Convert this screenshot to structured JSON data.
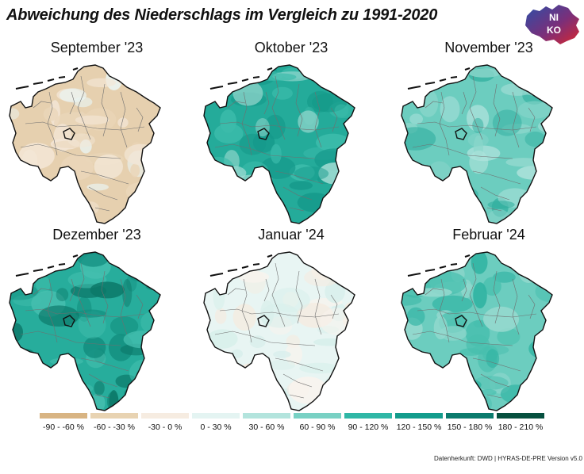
{
  "title": "Abweichung des Niederschlags im Vergleich zu 1991-2020",
  "logo": {
    "text": [
      "NI",
      "KO"
    ]
  },
  "legend": [
    {
      "label": "-90 - -60 %",
      "color": "#d8b483"
    },
    {
      "label": "-60 - -30 %",
      "color": "#e8d3b2"
    },
    {
      "label": "-30 - 0 %",
      "color": "#f6ece1"
    },
    {
      "label": "0 - 30 %",
      "color": "#e4f4f2"
    },
    {
      "label": "30 - 60 %",
      "color": "#b3e4dd"
    },
    {
      "label": "60 - 90 %",
      "color": "#79d1c4"
    },
    {
      "label": "90 - 120 %",
      "color": "#2fb7a6"
    },
    {
      "label": "120 - 150 %",
      "color": "#139c8c"
    },
    {
      "label": "150 - 180 %",
      "color": "#0b7b6d"
    },
    {
      "label": "180 - 210 %",
      "color": "#06503f"
    }
  ],
  "panels": [
    {
      "title": "September '23",
      "colors": [
        "#e6d0af",
        "#f3e6d6",
        "#ead6b9",
        "#eaf4f3"
      ]
    },
    {
      "title": "Oktober '23",
      "colors": [
        "#24ab9a",
        "#15998a",
        "#3cbcab",
        "#a5ddd5"
      ]
    },
    {
      "title": "November '23",
      "colors": [
        "#6ccdbf",
        "#2fae9e",
        "#8bd6cb",
        "#aee2db"
      ]
    },
    {
      "title": "Dezember '23",
      "colors": [
        "#27ad9c",
        "#138f80",
        "#45bfaf",
        "#0c7869"
      ]
    },
    {
      "title": "Januar '24",
      "colors": [
        "#e8f5f3",
        "#d7efeb",
        "#f5ebe0",
        "#f9f3ed"
      ]
    },
    {
      "title": "Februar '24",
      "colors": [
        "#6ccdbf",
        "#48bfae",
        "#96d9cf",
        "#2fb3a2"
      ]
    }
  ],
  "source": "Datenherkunft: DWD | HYRAS-DE-PRE Version v5.0"
}
